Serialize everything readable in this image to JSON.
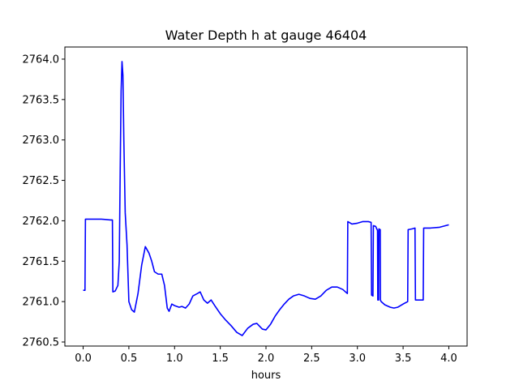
{
  "chart_data": {
    "type": "line",
    "title": "Water Depth h at gauge 46404",
    "xlabel": "hours",
    "ylabel": "",
    "xlim": [
      -0.2,
      4.2
    ],
    "ylim": [
      2760.45,
      2764.15
    ],
    "xticks": [
      0.0,
      0.5,
      1.0,
      1.5,
      2.0,
      2.5,
      3.0,
      3.5,
      4.0
    ],
    "xtick_labels": [
      "0.0",
      "0.5",
      "1.0",
      "1.5",
      "2.0",
      "2.5",
      "3.0",
      "3.5",
      "4.0"
    ],
    "yticks": [
      2760.5,
      2761.0,
      2761.5,
      2762.0,
      2762.5,
      2763.0,
      2763.5,
      2764.0
    ],
    "ytick_labels": [
      "2760.5",
      "2761.0",
      "2761.5",
      "2762.0",
      "2762.5",
      "2763.0",
      "2763.5",
      "2764.0"
    ],
    "grid": false,
    "legend": "none",
    "series": [
      {
        "color": "#0000ff",
        "points": [
          [
            0.0,
            2761.14
          ],
          [
            0.02,
            2761.14
          ],
          [
            0.025,
            2762.02
          ],
          [
            0.1,
            2762.02
          ],
          [
            0.2,
            2762.02
          ],
          [
            0.3,
            2762.01
          ],
          [
            0.32,
            2762.01
          ],
          [
            0.325,
            2761.12
          ],
          [
            0.35,
            2761.13
          ],
          [
            0.38,
            2761.2
          ],
          [
            0.395,
            2761.5
          ],
          [
            0.405,
            2762.6
          ],
          [
            0.415,
            2763.6
          ],
          [
            0.425,
            2763.97
          ],
          [
            0.435,
            2763.8
          ],
          [
            0.445,
            2763.0
          ],
          [
            0.46,
            2762.1
          ],
          [
            0.48,
            2761.7
          ],
          [
            0.5,
            2761.0
          ],
          [
            0.53,
            2760.9
          ],
          [
            0.56,
            2760.87
          ],
          [
            0.6,
            2761.1
          ],
          [
            0.64,
            2761.45
          ],
          [
            0.68,
            2761.68
          ],
          [
            0.72,
            2761.6
          ],
          [
            0.75,
            2761.5
          ],
          [
            0.78,
            2761.37
          ],
          [
            0.82,
            2761.34
          ],
          [
            0.86,
            2761.34
          ],
          [
            0.89,
            2761.2
          ],
          [
            0.92,
            2760.92
          ],
          [
            0.94,
            2760.88
          ],
          [
            0.97,
            2760.97
          ],
          [
            1.0,
            2760.95
          ],
          [
            1.05,
            2760.93
          ],
          [
            1.08,
            2760.94
          ],
          [
            1.12,
            2760.92
          ],
          [
            1.16,
            2760.97
          ],
          [
            1.2,
            2761.07
          ],
          [
            1.25,
            2761.1
          ],
          [
            1.28,
            2761.12
          ],
          [
            1.32,
            2761.02
          ],
          [
            1.36,
            2760.98
          ],
          [
            1.4,
            2761.02
          ],
          [
            1.44,
            2760.95
          ],
          [
            1.5,
            2760.85
          ],
          [
            1.56,
            2760.77
          ],
          [
            1.62,
            2760.7
          ],
          [
            1.68,
            2760.62
          ],
          [
            1.74,
            2760.58
          ],
          [
            1.8,
            2760.67
          ],
          [
            1.86,
            2760.72
          ],
          [
            1.9,
            2760.73
          ],
          [
            1.96,
            2760.66
          ],
          [
            2.0,
            2760.65
          ],
          [
            2.05,
            2760.72
          ],
          [
            2.1,
            2760.82
          ],
          [
            2.15,
            2760.9
          ],
          [
            2.2,
            2760.97
          ],
          [
            2.25,
            2761.03
          ],
          [
            2.3,
            2761.07
          ],
          [
            2.36,
            2761.09
          ],
          [
            2.42,
            2761.07
          ],
          [
            2.48,
            2761.04
          ],
          [
            2.54,
            2761.03
          ],
          [
            2.6,
            2761.07
          ],
          [
            2.66,
            2761.14
          ],
          [
            2.72,
            2761.18
          ],
          [
            2.78,
            2761.18
          ],
          [
            2.84,
            2761.15
          ],
          [
            2.89,
            2761.1
          ],
          [
            2.895,
            2761.99
          ],
          [
            2.94,
            2761.96
          ],
          [
            3.0,
            2761.97
          ],
          [
            3.06,
            2761.99
          ],
          [
            3.12,
            2761.99
          ],
          [
            3.15,
            2761.98
          ],
          [
            3.155,
            2761.08
          ],
          [
            3.17,
            2761.07
          ],
          [
            3.175,
            2761.94
          ],
          [
            3.2,
            2761.93
          ],
          [
            3.22,
            2761.88
          ],
          [
            3.223,
            2761.02
          ],
          [
            3.232,
            2761.02
          ],
          [
            3.235,
            2761.9
          ],
          [
            3.25,
            2761.89
          ],
          [
            3.252,
            2761.02
          ],
          [
            3.26,
            2761.0
          ],
          [
            3.3,
            2760.96
          ],
          [
            3.36,
            2760.93
          ],
          [
            3.4,
            2760.92
          ],
          [
            3.44,
            2760.93
          ],
          [
            3.5,
            2760.97
          ],
          [
            3.55,
            2761.0
          ],
          [
            3.555,
            2761.89
          ],
          [
            3.6,
            2761.9
          ],
          [
            3.63,
            2761.91
          ],
          [
            3.635,
            2761.02
          ],
          [
            3.66,
            2761.02
          ],
          [
            3.72,
            2761.02
          ],
          [
            3.725,
            2761.91
          ],
          [
            3.8,
            2761.91
          ],
          [
            3.9,
            2761.92
          ],
          [
            4.0,
            2761.95
          ]
        ]
      }
    ]
  }
}
